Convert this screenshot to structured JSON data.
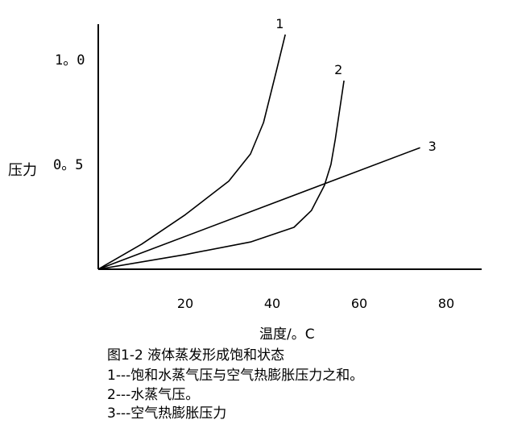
{
  "chart_data": {
    "type": "line",
    "title": "",
    "xlabel": "温度/。C",
    "ylabel": "压力",
    "xlim": [
      0,
      90
    ],
    "ylim": [
      0,
      1.15
    ],
    "x_ticks": [
      "20",
      "40",
      "60",
      "80"
    ],
    "x_tick_values": [
      20,
      40,
      60,
      80
    ],
    "y_ticks": [
      "1。0",
      "0。5"
    ],
    "y_tick_values": [
      1.0,
      0.5
    ],
    "grid": false,
    "series": [
      {
        "name": "1",
        "color": "#000000",
        "x": [
          0,
          10,
          20,
          30,
          35,
          38,
          41,
          43
        ],
        "y": [
          0,
          0.12,
          0.26,
          0.42,
          0.55,
          0.7,
          0.95,
          1.12
        ]
      },
      {
        "name": "2",
        "color": "#000000",
        "x": [
          0,
          20,
          35,
          45,
          49,
          52,
          53.5,
          54.5,
          55.5,
          56.5
        ],
        "y": [
          0,
          0.07,
          0.13,
          0.2,
          0.28,
          0.4,
          0.5,
          0.62,
          0.76,
          0.9
        ]
      },
      {
        "name": "3",
        "color": "#000000",
        "x": [
          0,
          74
        ],
        "y": [
          0,
          0.58
        ]
      }
    ]
  },
  "caption": {
    "title": "图1-2  液体蒸发形成饱和状态",
    "lines": [
      "1---饱和水蒸气压与空气热膨胀压力之和。",
      "2---水蒸气压。",
      "3---空气热膨胀压力"
    ]
  }
}
